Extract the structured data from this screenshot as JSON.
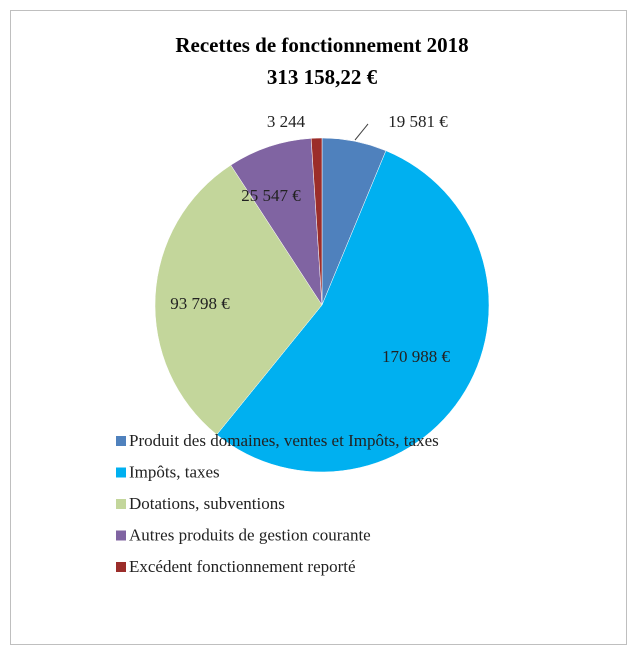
{
  "chart_data": {
    "type": "pie",
    "title": "Recettes de fonctionnement 2018",
    "subtitle": "313 158,22 €",
    "categories": [
      "Produit des domaines, ventes et Impôts, taxes",
      "Impôts, taxes",
      "Dotations, subventions",
      "Autres produits de gestion courante",
      "Excédent fonctionnement reporté"
    ],
    "values": [
      19581,
      170988,
      93798,
      25547,
      3244
    ],
    "value_labels": [
      "19 581 €",
      "170 988 €",
      "93 798 €",
      "25 547 €",
      "3 244"
    ],
    "colors": [
      "#4f81bd",
      "#00b0f0",
      "#c3d69b",
      "#8064a2",
      "#9b2d2a"
    ],
    "legend": "bottom"
  }
}
